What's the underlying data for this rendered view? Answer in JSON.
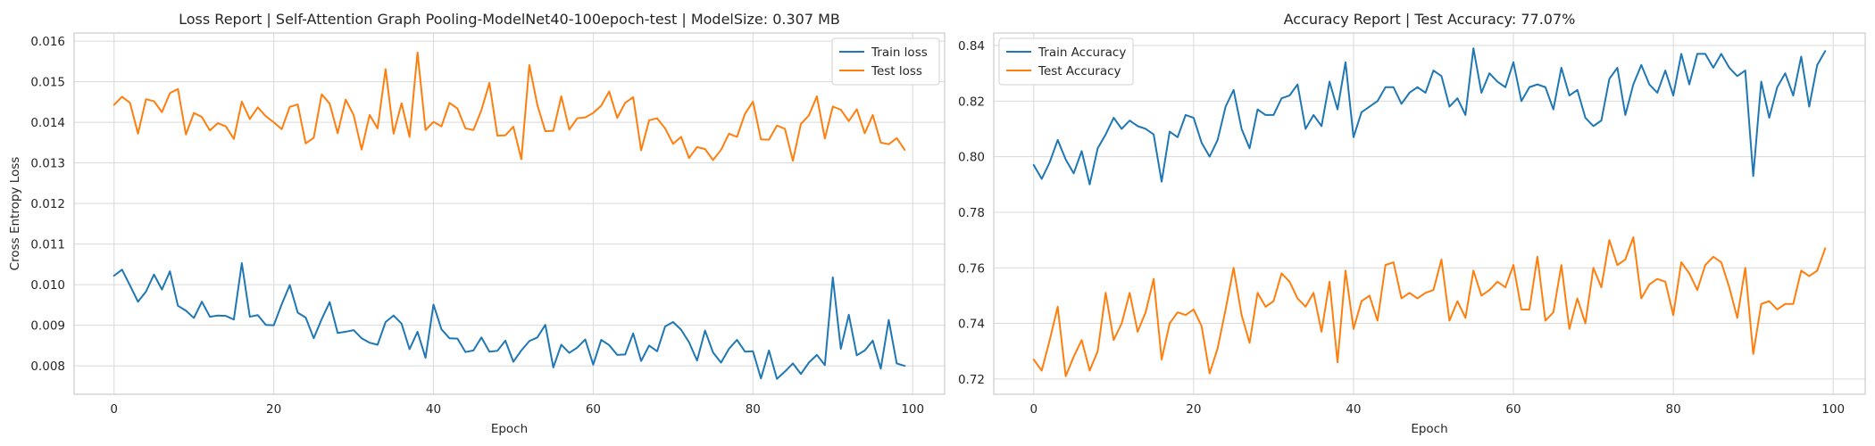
{
  "chart_data": [
    {
      "type": "line",
      "title": "Loss Report | Self-Attention Graph Pooling-ModelNet40-100epoch-test | ModelSize: 0.307 MB",
      "xlabel": "Epoch",
      "ylabel": "Cross Entropy Loss",
      "xlim": [
        -5,
        104
      ],
      "ylim": [
        0.0073,
        0.0162
      ],
      "xticks": [
        0,
        20,
        40,
        60,
        80,
        100
      ],
      "yticks": [
        0.008,
        0.009,
        0.01,
        0.011,
        0.012,
        0.013,
        0.014,
        0.015,
        0.016
      ],
      "ytick_labels": [
        "0.008",
        "0.009",
        "0.010",
        "0.011",
        "0.012",
        "0.013",
        "0.014",
        "0.015",
        "0.016"
      ],
      "grid": true,
      "legend": "top-right",
      "series": [
        {
          "name": "Train loss",
          "color": "#1f77b4",
          "values": [
            0.01022,
            0.01037,
            0.00998,
            0.00958,
            0.00983,
            0.01025,
            0.00988,
            0.01033,
            0.00948,
            0.00936,
            0.00918,
            0.00958,
            0.00921,
            0.00924,
            0.00923,
            0.00914,
            0.01053,
            0.00921,
            0.00925,
            0.00901,
            0.009,
            0.00952,
            0.00999,
            0.00931,
            0.00919,
            0.00868,
            0.00915,
            0.00957,
            0.00881,
            0.00884,
            0.00888,
            0.00868,
            0.00857,
            0.00852,
            0.00908,
            0.00924,
            0.00904,
            0.00841,
            0.00884,
            0.0082,
            0.00951,
            0.0089,
            0.00868,
            0.00867,
            0.00834,
            0.00838,
            0.0087,
            0.00835,
            0.00837,
            0.00862,
            0.0081,
            0.00838,
            0.00861,
            0.0087,
            0.00901,
            0.00796,
            0.00852,
            0.00832,
            0.00845,
            0.00865,
            0.00803,
            0.00864,
            0.00851,
            0.00827,
            0.00828,
            0.0088,
            0.00812,
            0.0085,
            0.00836,
            0.00897,
            0.00908,
            0.00889,
            0.00858,
            0.00813,
            0.00887,
            0.00833,
            0.00808,
            0.00842,
            0.00864,
            0.00835,
            0.00836,
            0.00769,
            0.00838,
            0.00768,
            0.00786,
            0.00806,
            0.0078,
            0.00808,
            0.00827,
            0.00802,
            0.01018,
            0.00842,
            0.00926,
            0.00826,
            0.00838,
            0.00862,
            0.00793,
            0.00913,
            0.00806,
            0.008
          ]
        },
        {
          "name": "Test loss",
          "color": "#ff7f0e",
          "values": [
            0.01443,
            0.01463,
            0.01448,
            0.01372,
            0.01457,
            0.01452,
            0.01425,
            0.01472,
            0.01482,
            0.0137,
            0.01423,
            0.01413,
            0.0138,
            0.01398,
            0.0139,
            0.01359,
            0.01451,
            0.01408,
            0.01437,
            0.01415,
            0.014,
            0.01383,
            0.01438,
            0.01444,
            0.01348,
            0.01362,
            0.01469,
            0.01446,
            0.01373,
            0.01456,
            0.01418,
            0.01333,
            0.01418,
            0.01385,
            0.01531,
            0.01372,
            0.01447,
            0.01364,
            0.01572,
            0.01381,
            0.01401,
            0.0139,
            0.01448,
            0.01434,
            0.01385,
            0.01381,
            0.0143,
            0.01497,
            0.01367,
            0.01368,
            0.01389,
            0.01309,
            0.01541,
            0.01443,
            0.01378,
            0.01379,
            0.01464,
            0.01382,
            0.0141,
            0.01412,
            0.01423,
            0.01441,
            0.01476,
            0.01411,
            0.01448,
            0.01462,
            0.01331,
            0.01405,
            0.0141,
            0.01385,
            0.01347,
            0.01364,
            0.01312,
            0.01339,
            0.01334,
            0.01307,
            0.01332,
            0.01372,
            0.01364,
            0.01421,
            0.01451,
            0.01358,
            0.01357,
            0.01392,
            0.01384,
            0.01305,
            0.01396,
            0.01417,
            0.01464,
            0.0136,
            0.01439,
            0.01431,
            0.01403,
            0.01432,
            0.01373,
            0.01418,
            0.0135,
            0.01346,
            0.01361,
            0.01332
          ]
        }
      ]
    },
    {
      "type": "line",
      "title": "Accuracy Report | Test Accuracy: 77.07%",
      "xlabel": "Epoch",
      "ylabel": "",
      "xlim": [
        -5,
        104
      ],
      "ylim": [
        0.7145,
        0.8445
      ],
      "xticks": [
        0,
        20,
        40,
        60,
        80,
        100
      ],
      "yticks": [
        0.72,
        0.74,
        0.76,
        0.78,
        0.8,
        0.82,
        0.84
      ],
      "ytick_labels": [
        "0.72",
        "0.74",
        "0.76",
        "0.78",
        "0.80",
        "0.82",
        "0.84"
      ],
      "grid": true,
      "legend": "top-left",
      "series": [
        {
          "name": "Train Accuracy",
          "color": "#1f77b4",
          "values": [
            0.797,
            0.792,
            0.798,
            0.806,
            0.799,
            0.794,
            0.802,
            0.79,
            0.803,
            0.808,
            0.814,
            0.81,
            0.813,
            0.811,
            0.81,
            0.808,
            0.791,
            0.809,
            0.807,
            0.815,
            0.814,
            0.805,
            0.8,
            0.806,
            0.818,
            0.824,
            0.81,
            0.803,
            0.817,
            0.815,
            0.815,
            0.821,
            0.822,
            0.826,
            0.81,
            0.815,
            0.811,
            0.827,
            0.817,
            0.834,
            0.807,
            0.816,
            0.818,
            0.82,
            0.825,
            0.825,
            0.819,
            0.823,
            0.825,
            0.823,
            0.831,
            0.829,
            0.818,
            0.821,
            0.815,
            0.839,
            0.823,
            0.83,
            0.827,
            0.825,
            0.834,
            0.82,
            0.825,
            0.826,
            0.825,
            0.817,
            0.832,
            0.822,
            0.824,
            0.814,
            0.811,
            0.813,
            0.828,
            0.832,
            0.815,
            0.826,
            0.833,
            0.826,
            0.823,
            0.831,
            0.822,
            0.837,
            0.826,
            0.837,
            0.837,
            0.832,
            0.837,
            0.832,
            0.829,
            0.831,
            0.793,
            0.827,
            0.814,
            0.825,
            0.83,
            0.822,
            0.836,
            0.818,
            0.833,
            0.838
          ]
        },
        {
          "name": "Test Accuracy",
          "color": "#ff7f0e",
          "values": [
            0.727,
            0.723,
            0.734,
            0.746,
            0.721,
            0.728,
            0.734,
            0.723,
            0.73,
            0.751,
            0.734,
            0.74,
            0.751,
            0.737,
            0.744,
            0.756,
            0.727,
            0.74,
            0.744,
            0.743,
            0.745,
            0.739,
            0.722,
            0.731,
            0.745,
            0.76,
            0.743,
            0.733,
            0.751,
            0.746,
            0.748,
            0.758,
            0.755,
            0.749,
            0.746,
            0.751,
            0.737,
            0.755,
            0.726,
            0.759,
            0.738,
            0.748,
            0.75,
            0.741,
            0.761,
            0.762,
            0.749,
            0.751,
            0.749,
            0.751,
            0.752,
            0.763,
            0.741,
            0.748,
            0.742,
            0.759,
            0.75,
            0.752,
            0.755,
            0.753,
            0.761,
            0.745,
            0.745,
            0.764,
            0.741,
            0.744,
            0.761,
            0.738,
            0.749,
            0.74,
            0.76,
            0.753,
            0.77,
            0.761,
            0.763,
            0.771,
            0.749,
            0.754,
            0.756,
            0.755,
            0.743,
            0.762,
            0.758,
            0.752,
            0.761,
            0.764,
            0.762,
            0.753,
            0.742,
            0.76,
            0.729,
            0.747,
            0.748,
            0.745,
            0.747,
            0.747,
            0.759,
            0.757,
            0.759,
            0.767
          ]
        }
      ]
    }
  ]
}
